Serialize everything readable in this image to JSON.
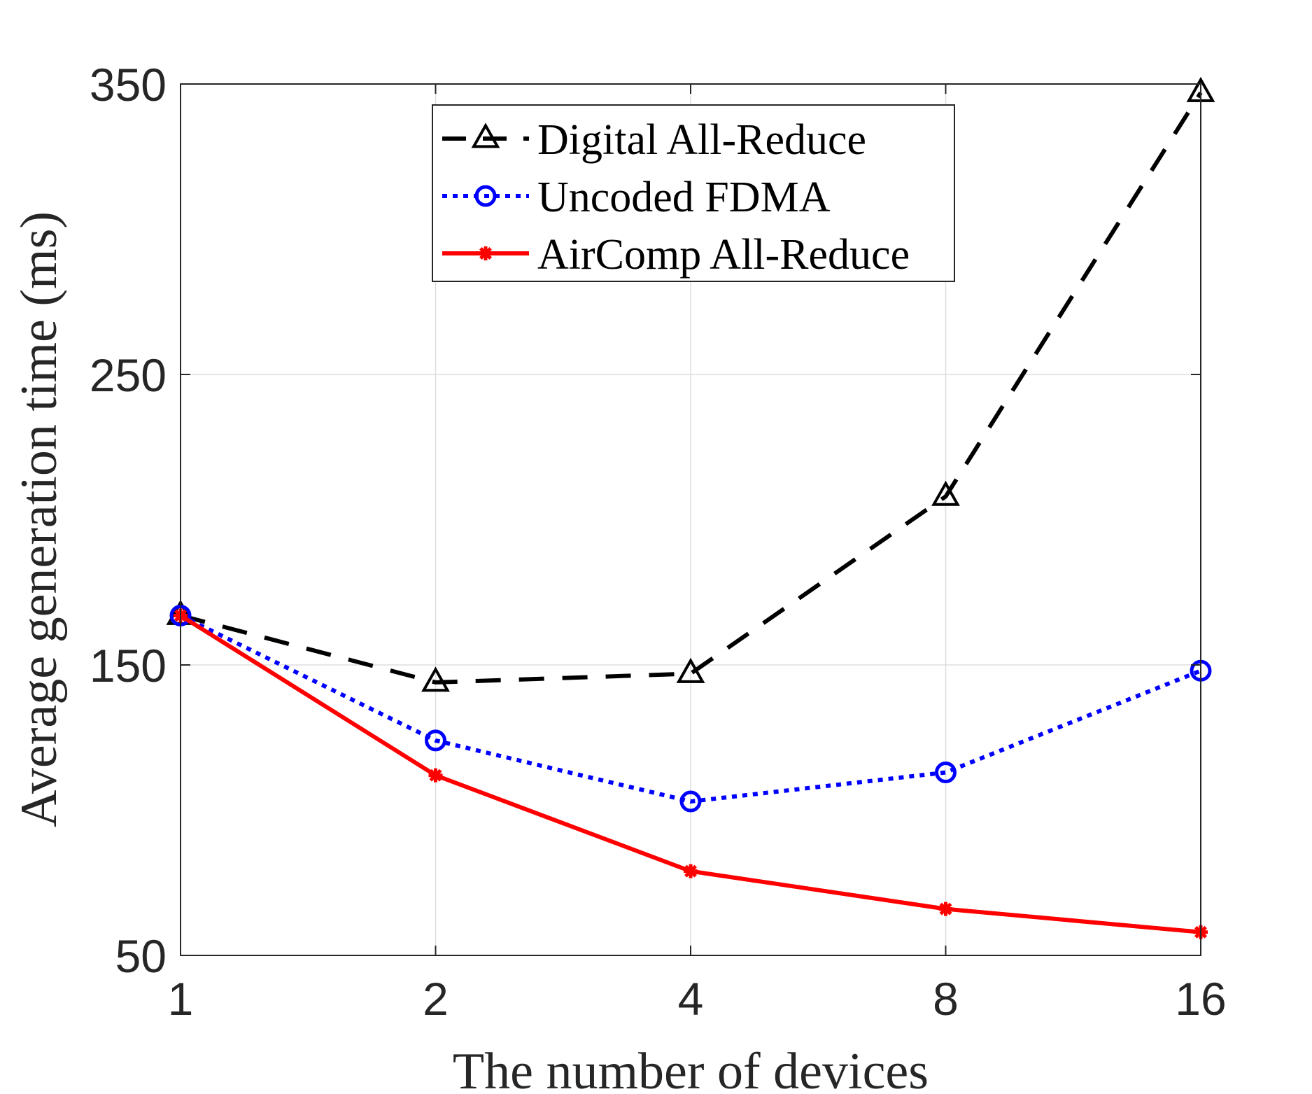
{
  "chart_data": {
    "type": "line",
    "title": "",
    "xlabel": "The number of devices",
    "ylabel": "Average generation time (ms)",
    "categories": [
      "1",
      "2",
      "4",
      "8",
      "16"
    ],
    "ylim": [
      50,
      350
    ],
    "yticks": [
      "50",
      "150",
      "250",
      "350"
    ],
    "grid": true,
    "legend_position": "top-center",
    "series": [
      {
        "name": "Digital All-Reduce",
        "color": "#000000",
        "line_style": "dashed",
        "marker": "triangle",
        "values": [
          167,
          144,
          147,
          208,
          347
        ]
      },
      {
        "name": "Uncoded FDMA",
        "color": "#0000ff",
        "line_style": "dotted",
        "marker": "circle",
        "values": [
          167,
          124,
          103,
          113,
          148
        ]
      },
      {
        "name": "AirComp All-Reduce",
        "color": "#ff0000",
        "line_style": "solid",
        "marker": "asterisk",
        "values": [
          167,
          112,
          79,
          66,
          58
        ]
      }
    ]
  }
}
